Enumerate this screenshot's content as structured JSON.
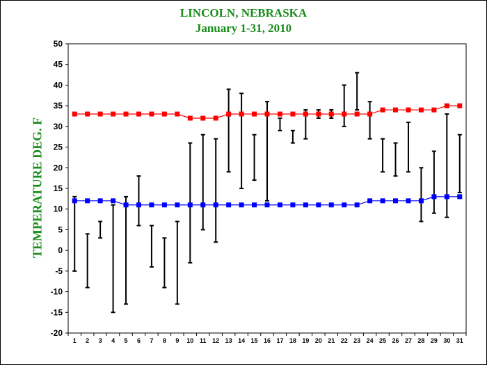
{
  "chart_data": {
    "type": "line",
    "title": "LINCOLN, NEBRASKA",
    "subtitle": "January 1-31, 2010",
    "ylabel": "TEMPERATURE DEG.  F",
    "xlabel": "",
    "ylim": [
      -20,
      50
    ],
    "y_ticks": [
      -20,
      -15,
      -10,
      -5,
      0,
      5,
      10,
      15,
      20,
      25,
      30,
      35,
      40,
      45,
      50
    ],
    "x": [
      1,
      2,
      3,
      4,
      5,
      6,
      7,
      8,
      9,
      10,
      11,
      12,
      13,
      14,
      15,
      16,
      17,
      18,
      19,
      20,
      21,
      22,
      23,
      24,
      25,
      26,
      27,
      28,
      29,
      30,
      31
    ],
    "grid": true,
    "series": [
      {
        "type": "line",
        "color": "#ff0000",
        "values": [
          33,
          33,
          33,
          33,
          33,
          33,
          33,
          33,
          33,
          32,
          32,
          32,
          33,
          33,
          33,
          33,
          33,
          33,
          33,
          33,
          33,
          33,
          33,
          33,
          34,
          34,
          34,
          34,
          34,
          35,
          35
        ]
      },
      {
        "type": "line",
        "color": "#0000ff",
        "values": [
          12,
          12,
          12,
          12,
          11,
          11,
          11,
          11,
          11,
          11,
          11,
          11,
          11,
          11,
          11,
          11,
          11,
          11,
          11,
          11,
          11,
          11,
          11,
          12,
          12,
          12,
          12,
          12,
          13,
          13,
          13
        ]
      },
      {
        "type": "range",
        "color": "#000000",
        "high": [
          13,
          4,
          7,
          11,
          13,
          18,
          6,
          3,
          7,
          26,
          28,
          27,
          39,
          38,
          28,
          36,
          32,
          29,
          34,
          34,
          34,
          40,
          43,
          36,
          27,
          26,
          31,
          20,
          24,
          33,
          28
        ],
        "low": [
          -5,
          -9,
          3,
          -15,
          -13,
          6,
          -4,
          -9,
          -13,
          -3,
          5,
          2,
          19,
          15,
          17,
          12,
          29,
          26,
          27,
          32,
          32,
          30,
          34,
          27,
          19,
          18,
          19,
          7,
          9,
          8,
          14
        ]
      }
    ]
  }
}
